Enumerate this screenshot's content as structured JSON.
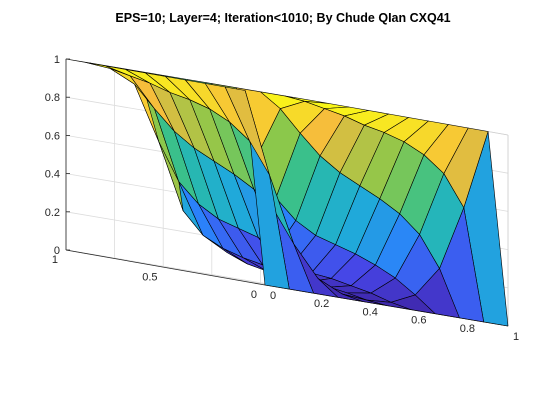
{
  "chart_data": {
    "type": "surface",
    "title": "EPS=10; Layer=4; Iteration<1010; By Chude QIan CXQ41",
    "colormap": [
      "#3e26a8",
      "#4744e6",
      "#2c7ffc",
      "#1fadd6",
      "#2ebf94",
      "#8ac84b",
      "#f6ba3d",
      "#f9fb15"
    ],
    "edge_color": "#000000",
    "grid": "on",
    "xlim": [
      0,
      1
    ],
    "ylim": [
      0,
      1
    ],
    "zlim": [
      0,
      1
    ],
    "x_ticks": [
      "0",
      "0.2",
      "0.4",
      "0.6",
      "0.8",
      "1"
    ],
    "x_tick_values": [
      0,
      0.2,
      0.4,
      0.6,
      0.8,
      1
    ],
    "y_ticks": [
      "0",
      "0.5",
      "1"
    ],
    "y_tick_values": [
      0,
      0.5,
      1
    ],
    "z_ticks": [
      "0",
      "0.2",
      "0.4",
      "0.6",
      "0.8",
      "1"
    ],
    "z_tick_values": [
      0,
      0.2,
      0.4,
      0.6,
      0.8,
      1
    ],
    "x": [
      0,
      0.1,
      0.2,
      0.3,
      0.4,
      0.5,
      0.6,
      0.7,
      0.8,
      0.9,
      1
    ],
    "y": [
      0,
      0.1,
      0.2,
      0.3,
      0.4,
      0.5,
      0.6,
      0.7,
      0.8,
      0.9,
      1
    ],
    "z": [
      [
        0,
        0,
        0,
        0,
        0,
        0,
        0,
        0,
        0,
        0,
        0
      ],
      [
        1,
        0.58,
        0.24,
        0.08,
        0.02,
        0.01,
        0.02,
        0.08,
        0.24,
        0.58,
        1
      ],
      [
        1,
        0.74,
        0.4,
        0.15,
        0.05,
        0.03,
        0.05,
        0.15,
        0.4,
        0.74,
        1
      ],
      [
        1,
        0.82,
        0.49,
        0.2,
        0.07,
        0.04,
        0.07,
        0.2,
        0.49,
        0.82,
        1
      ],
      [
        1,
        0.87,
        0.55,
        0.24,
        0.09,
        0.05,
        0.09,
        0.24,
        0.55,
        0.87,
        1
      ],
      [
        1,
        0.9,
        0.6,
        0.27,
        0.1,
        0.06,
        0.1,
        0.27,
        0.6,
        0.9,
        1
      ],
      [
        1,
        0.92,
        0.65,
        0.3,
        0.12,
        0.07,
        0.12,
        0.3,
        0.65,
        0.92,
        1
      ],
      [
        1,
        0.95,
        0.72,
        0.36,
        0.15,
        0.09,
        0.15,
        0.36,
        0.72,
        0.95,
        1
      ],
      [
        1,
        0.97,
        0.82,
        0.46,
        0.2,
        0.13,
        0.2,
        0.46,
        0.82,
        0.97,
        1
      ],
      [
        1,
        0.99,
        0.93,
        0.65,
        0.31,
        0.2,
        0.31,
        0.65,
        0.93,
        0.99,
        1
      ],
      [
        1,
        1,
        1,
        1,
        1,
        1,
        1,
        1,
        1,
        1,
        1
      ]
    ]
  }
}
